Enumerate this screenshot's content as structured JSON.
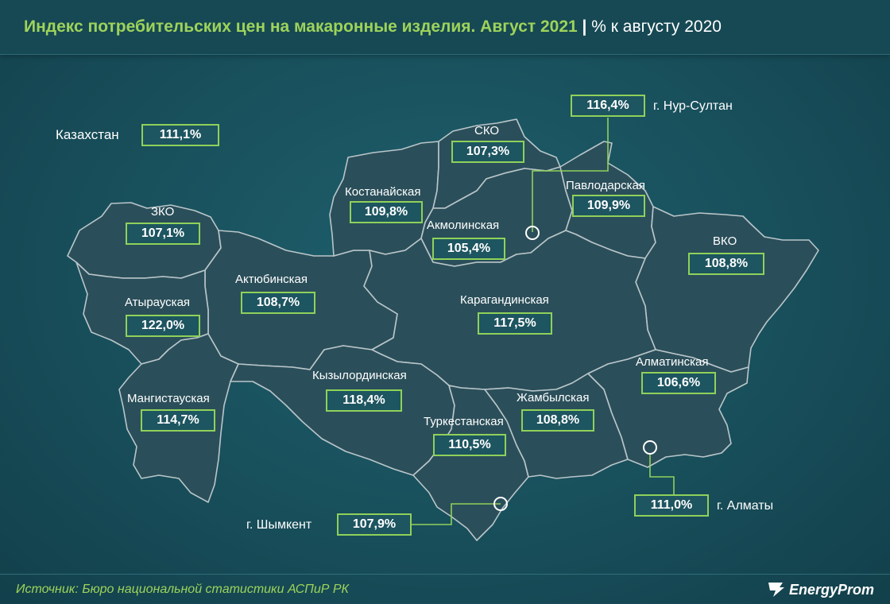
{
  "title": {
    "main": "Индекс потребительских цен на макаронные изделия. Август 2021",
    "separator": "|",
    "sub": "% к августу 2020"
  },
  "country": {
    "label": "Казахстан",
    "value": "111,1%"
  },
  "regions": {
    "sko": {
      "label": "СКО",
      "value": "107,3%"
    },
    "kostanay": {
      "label": "Костанайская",
      "value": "109,8%"
    },
    "akmola": {
      "label": "Акмолинская",
      "value": "105,4%"
    },
    "pavlodar": {
      "label": "Павлодарская",
      "value": "109,9%"
    },
    "vko": {
      "label": "ВКО",
      "value": "108,8%"
    },
    "zko": {
      "label": "ЗКО",
      "value": "107,1%"
    },
    "aktobe": {
      "label": "Актюбинская",
      "value": "108,7%"
    },
    "atyrau": {
      "label": "Атырауская",
      "value": "122,0%"
    },
    "karaganda": {
      "label": "Карагандинская",
      "value": "117,5%"
    },
    "kyzylorda": {
      "label": "Кызылординская",
      "value": "118,4%"
    },
    "almaty_reg": {
      "label": "Алматинская",
      "value": "106,6%"
    },
    "mangistau": {
      "label": "Мангистауская",
      "value": "114,7%"
    },
    "zhambyl": {
      "label": "Жамбылская",
      "value": "108,8%"
    },
    "turkestan": {
      "label": "Туркестанская",
      "value": "110,5%"
    }
  },
  "cities": {
    "nursultan": {
      "label": "г. Нур-Султан",
      "value": "116,4%"
    },
    "almaty": {
      "label": "г. Алматы",
      "value": "111,0%"
    },
    "shymkent": {
      "label": "г. Шымкент",
      "value": "107,9%"
    }
  },
  "source": "Источник: Бюро национальной статистики АСПиР РК",
  "logo": "EnergyProm",
  "colors": {
    "accent": "#8fd15a",
    "background": "#1a515d",
    "region_fill": "#2b4f5a",
    "border": "#b9c6ca"
  }
}
